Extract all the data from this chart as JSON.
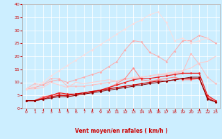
{
  "background_color": "#cceeff",
  "grid_color": "#ffffff",
  "xlabel": "Vent moyen/en rafales ( km/h )",
  "xlabel_color": "#cc0000",
  "x_ticks": [
    0,
    1,
    2,
    3,
    4,
    5,
    6,
    7,
    8,
    9,
    10,
    11,
    12,
    13,
    14,
    15,
    16,
    17,
    18,
    19,
    20,
    21,
    22,
    23
  ],
  "ylim": [
    0,
    40
  ],
  "y_ticks": [
    0,
    5,
    10,
    15,
    20,
    25,
    30,
    35,
    40
  ],
  "lines": [
    {
      "color": "#ffbbbb",
      "y": [
        7.5,
        9.5,
        9.0,
        11.5,
        11.5,
        8.5,
        8.5,
        8.5,
        9.0,
        9.5,
        10.0,
        10.5,
        11.5,
        11.5,
        12.0,
        12.5,
        13.0,
        13.0,
        13.5,
        14.0,
        21.0,
        17.0,
        12.0,
        9.5
      ],
      "marker": "D",
      "markersize": 1.5,
      "linewidth": 0.7
    },
    {
      "color": "#ffcccc",
      "y": [
        7.5,
        7.5,
        8.0,
        10.0,
        9.0,
        8.0,
        10.0,
        9.5,
        10.0,
        10.5,
        11.0,
        10.5,
        11.0,
        12.0,
        12.0,
        12.5,
        13.0,
        13.5,
        14.0,
        14.5,
        15.5,
        17.5,
        18.0,
        20.0
      ],
      "marker": null,
      "linewidth": 0.8
    },
    {
      "color": "#ffaaaa",
      "y": [
        7.5,
        8.0,
        9.0,
        10.5,
        11.0,
        10.0,
        11.0,
        12.0,
        13.0,
        14.0,
        16.0,
        18.0,
        22.5,
        26.0,
        25.5,
        21.5,
        20.0,
        18.0,
        22.0,
        26.0,
        26.0,
        28.0,
        27.0,
        25.0
      ],
      "marker": "D",
      "markersize": 1.5,
      "linewidth": 0.7
    },
    {
      "color": "#ffdddd",
      "y": [
        7.5,
        8.5,
        10.0,
        12.5,
        14.5,
        16.5,
        18.5,
        20.5,
        22.5,
        24.5,
        26.5,
        28.5,
        30.5,
        32.5,
        34.0,
        36.0,
        37.0,
        33.0,
        26.0,
        27.0,
        25.0,
        26.0,
        27.0,
        null
      ],
      "marker": "D",
      "markersize": 1.5,
      "linewidth": 0.7
    },
    {
      "color": "#ff8888",
      "y": [
        3.0,
        3.0,
        4.5,
        5.0,
        5.5,
        4.5,
        5.0,
        5.5,
        6.0,
        7.0,
        8.0,
        9.5,
        11.5,
        15.5,
        11.0,
        10.5,
        11.0,
        11.5,
        12.0,
        11.0,
        11.0,
        11.5,
        4.5,
        3.0
      ],
      "marker": "D",
      "markersize": 1.5,
      "linewidth": 0.8
    },
    {
      "color": "#ee2222",
      "y": [
        3.0,
        3.0,
        4.0,
        5.0,
        6.0,
        5.5,
        5.5,
        6.0,
        6.5,
        7.0,
        8.0,
        9.0,
        10.0,
        11.0,
        11.5,
        11.5,
        12.0,
        12.5,
        13.0,
        13.5,
        13.5,
        13.5,
        5.0,
        3.0
      ],
      "marker": "D",
      "markersize": 1.5,
      "linewidth": 0.9
    },
    {
      "color": "#cc0000",
      "y": [
        3.0,
        3.0,
        3.5,
        4.5,
        5.0,
        5.0,
        5.5,
        6.0,
        6.5,
        7.0,
        7.5,
        8.0,
        8.5,
        9.0,
        9.5,
        10.0,
        10.5,
        10.5,
        11.0,
        11.5,
        11.5,
        11.5,
        4.0,
        2.5
      ],
      "marker": "D",
      "markersize": 1.5,
      "linewidth": 0.9
    },
    {
      "color": "#880000",
      "y": [
        3.0,
        3.0,
        3.5,
        4.0,
        4.5,
        4.5,
        5.0,
        5.5,
        6.0,
        6.5,
        7.0,
        7.5,
        8.0,
        8.5,
        9.0,
        9.5,
        10.0,
        10.5,
        11.0,
        11.5,
        12.0,
        12.0,
        3.5,
        2.5
      ],
      "marker": "D",
      "markersize": 1.5,
      "linewidth": 0.7
    }
  ],
  "wind_arrows": [
    "↙",
    "↙",
    "↙",
    "↙",
    "↙",
    "→",
    "→",
    "↗",
    "↗",
    "↓",
    "↓",
    "↙",
    "↓",
    "↓",
    "↓",
    "↙",
    "↓",
    "↙",
    "↙",
    "↗",
    "→",
    "↗",
    "↙",
    "↗"
  ]
}
